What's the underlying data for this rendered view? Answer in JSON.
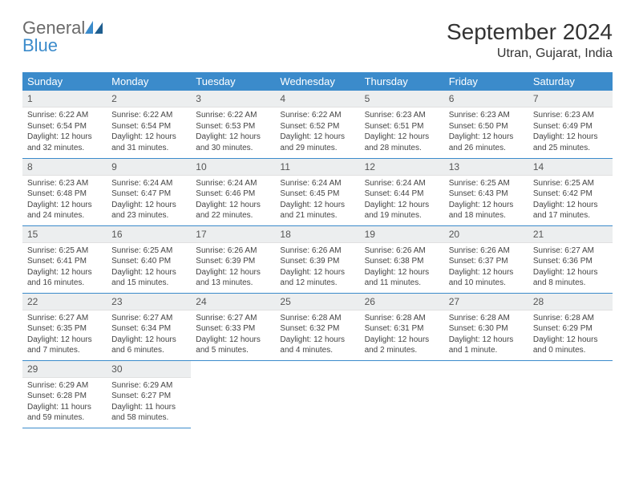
{
  "logo": {
    "general": "General",
    "blue": "Blue"
  },
  "title": "September 2024",
  "location": "Utran, Gujarat, India",
  "colors": {
    "header_bg": "#3b8bcb",
    "header_text": "#ffffff",
    "daynum_bg": "#eceeef",
    "row_border": "#3b8bcb",
    "body_text": "#444444"
  },
  "weekdays": [
    "Sunday",
    "Monday",
    "Tuesday",
    "Wednesday",
    "Thursday",
    "Friday",
    "Saturday"
  ],
  "weeks": [
    [
      {
        "n": "1",
        "sr": "Sunrise: 6:22 AM",
        "ss": "Sunset: 6:54 PM",
        "dl": "Daylight: 12 hours and 32 minutes."
      },
      {
        "n": "2",
        "sr": "Sunrise: 6:22 AM",
        "ss": "Sunset: 6:54 PM",
        "dl": "Daylight: 12 hours and 31 minutes."
      },
      {
        "n": "3",
        "sr": "Sunrise: 6:22 AM",
        "ss": "Sunset: 6:53 PM",
        "dl": "Daylight: 12 hours and 30 minutes."
      },
      {
        "n": "4",
        "sr": "Sunrise: 6:22 AM",
        "ss": "Sunset: 6:52 PM",
        "dl": "Daylight: 12 hours and 29 minutes."
      },
      {
        "n": "5",
        "sr": "Sunrise: 6:23 AM",
        "ss": "Sunset: 6:51 PM",
        "dl": "Daylight: 12 hours and 28 minutes."
      },
      {
        "n": "6",
        "sr": "Sunrise: 6:23 AM",
        "ss": "Sunset: 6:50 PM",
        "dl": "Daylight: 12 hours and 26 minutes."
      },
      {
        "n": "7",
        "sr": "Sunrise: 6:23 AM",
        "ss": "Sunset: 6:49 PM",
        "dl": "Daylight: 12 hours and 25 minutes."
      }
    ],
    [
      {
        "n": "8",
        "sr": "Sunrise: 6:23 AM",
        "ss": "Sunset: 6:48 PM",
        "dl": "Daylight: 12 hours and 24 minutes."
      },
      {
        "n": "9",
        "sr": "Sunrise: 6:24 AM",
        "ss": "Sunset: 6:47 PM",
        "dl": "Daylight: 12 hours and 23 minutes."
      },
      {
        "n": "10",
        "sr": "Sunrise: 6:24 AM",
        "ss": "Sunset: 6:46 PM",
        "dl": "Daylight: 12 hours and 22 minutes."
      },
      {
        "n": "11",
        "sr": "Sunrise: 6:24 AM",
        "ss": "Sunset: 6:45 PM",
        "dl": "Daylight: 12 hours and 21 minutes."
      },
      {
        "n": "12",
        "sr": "Sunrise: 6:24 AM",
        "ss": "Sunset: 6:44 PM",
        "dl": "Daylight: 12 hours and 19 minutes."
      },
      {
        "n": "13",
        "sr": "Sunrise: 6:25 AM",
        "ss": "Sunset: 6:43 PM",
        "dl": "Daylight: 12 hours and 18 minutes."
      },
      {
        "n": "14",
        "sr": "Sunrise: 6:25 AM",
        "ss": "Sunset: 6:42 PM",
        "dl": "Daylight: 12 hours and 17 minutes."
      }
    ],
    [
      {
        "n": "15",
        "sr": "Sunrise: 6:25 AM",
        "ss": "Sunset: 6:41 PM",
        "dl": "Daylight: 12 hours and 16 minutes."
      },
      {
        "n": "16",
        "sr": "Sunrise: 6:25 AM",
        "ss": "Sunset: 6:40 PM",
        "dl": "Daylight: 12 hours and 15 minutes."
      },
      {
        "n": "17",
        "sr": "Sunrise: 6:26 AM",
        "ss": "Sunset: 6:39 PM",
        "dl": "Daylight: 12 hours and 13 minutes."
      },
      {
        "n": "18",
        "sr": "Sunrise: 6:26 AM",
        "ss": "Sunset: 6:39 PM",
        "dl": "Daylight: 12 hours and 12 minutes."
      },
      {
        "n": "19",
        "sr": "Sunrise: 6:26 AM",
        "ss": "Sunset: 6:38 PM",
        "dl": "Daylight: 12 hours and 11 minutes."
      },
      {
        "n": "20",
        "sr": "Sunrise: 6:26 AM",
        "ss": "Sunset: 6:37 PM",
        "dl": "Daylight: 12 hours and 10 minutes."
      },
      {
        "n": "21",
        "sr": "Sunrise: 6:27 AM",
        "ss": "Sunset: 6:36 PM",
        "dl": "Daylight: 12 hours and 8 minutes."
      }
    ],
    [
      {
        "n": "22",
        "sr": "Sunrise: 6:27 AM",
        "ss": "Sunset: 6:35 PM",
        "dl": "Daylight: 12 hours and 7 minutes."
      },
      {
        "n": "23",
        "sr": "Sunrise: 6:27 AM",
        "ss": "Sunset: 6:34 PM",
        "dl": "Daylight: 12 hours and 6 minutes."
      },
      {
        "n": "24",
        "sr": "Sunrise: 6:27 AM",
        "ss": "Sunset: 6:33 PM",
        "dl": "Daylight: 12 hours and 5 minutes."
      },
      {
        "n": "25",
        "sr": "Sunrise: 6:28 AM",
        "ss": "Sunset: 6:32 PM",
        "dl": "Daylight: 12 hours and 4 minutes."
      },
      {
        "n": "26",
        "sr": "Sunrise: 6:28 AM",
        "ss": "Sunset: 6:31 PM",
        "dl": "Daylight: 12 hours and 2 minutes."
      },
      {
        "n": "27",
        "sr": "Sunrise: 6:28 AM",
        "ss": "Sunset: 6:30 PM",
        "dl": "Daylight: 12 hours and 1 minute."
      },
      {
        "n": "28",
        "sr": "Sunrise: 6:28 AM",
        "ss": "Sunset: 6:29 PM",
        "dl": "Daylight: 12 hours and 0 minutes."
      }
    ],
    [
      {
        "n": "29",
        "sr": "Sunrise: 6:29 AM",
        "ss": "Sunset: 6:28 PM",
        "dl": "Daylight: 11 hours and 59 minutes."
      },
      {
        "n": "30",
        "sr": "Sunrise: 6:29 AM",
        "ss": "Sunset: 6:27 PM",
        "dl": "Daylight: 11 hours and 58 minutes."
      },
      null,
      null,
      null,
      null,
      null
    ]
  ]
}
